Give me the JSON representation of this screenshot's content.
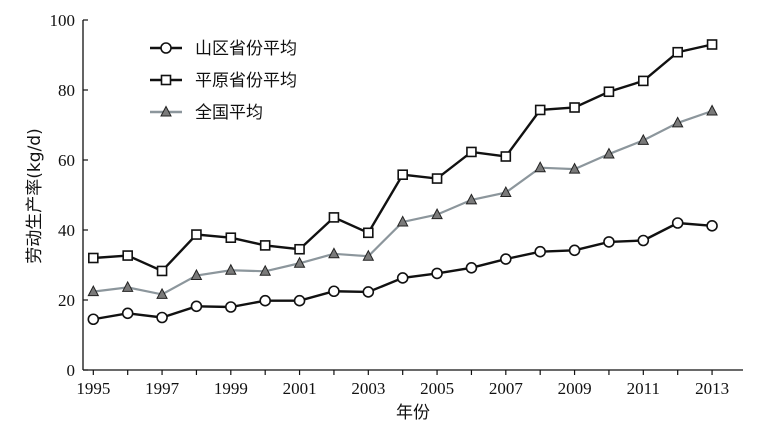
{
  "chart_data": {
    "type": "line",
    "title": "",
    "xlabel": "年份",
    "ylabel": "劳动生产率(kg/d)",
    "x": [
      1995,
      1996,
      1997,
      1998,
      1999,
      2000,
      2001,
      2002,
      2003,
      2004,
      2005,
      2006,
      2007,
      2008,
      2009,
      2010,
      2011,
      2012,
      2013
    ],
    "x_tick_labels": [
      "1995",
      "1997",
      "1999",
      "2001",
      "2003",
      "2005",
      "2007",
      "2009",
      "2011",
      "2013"
    ],
    "y_tick_labels": [
      "0",
      "20",
      "40",
      "60",
      "80",
      "100"
    ],
    "xlim": [
      1994.7,
      2013.9
    ],
    "ylim": [
      0,
      100
    ],
    "grid": false,
    "legend_position": "top-left",
    "series": [
      {
        "name": "山区省份平均",
        "marker": "circle",
        "color": "#111111",
        "values": [
          14.5,
          16.2,
          15.0,
          18.2,
          18.0,
          19.8,
          19.8,
          22.5,
          22.3,
          26.3,
          27.6,
          29.2,
          31.7,
          33.8,
          34.2,
          36.6,
          37.0,
          42.0,
          41.2
        ]
      },
      {
        "name": "平原省份平均",
        "marker": "square",
        "color": "#111111",
        "values": [
          32.0,
          32.7,
          28.3,
          38.7,
          37.8,
          35.6,
          34.5,
          43.6,
          39.2,
          55.8,
          54.7,
          62.3,
          61.0,
          74.3,
          75.0,
          79.5,
          82.6,
          90.8,
          93.0
        ]
      },
      {
        "name": "全国平均",
        "marker": "triangle",
        "color": "#8c969c",
        "values": [
          22.4,
          23.6,
          21.6,
          27.0,
          28.5,
          28.2,
          30.5,
          33.2,
          32.5,
          42.3,
          44.4,
          48.6,
          50.7,
          57.8,
          57.4,
          61.7,
          65.6,
          70.6,
          74.0
        ]
      }
    ]
  }
}
